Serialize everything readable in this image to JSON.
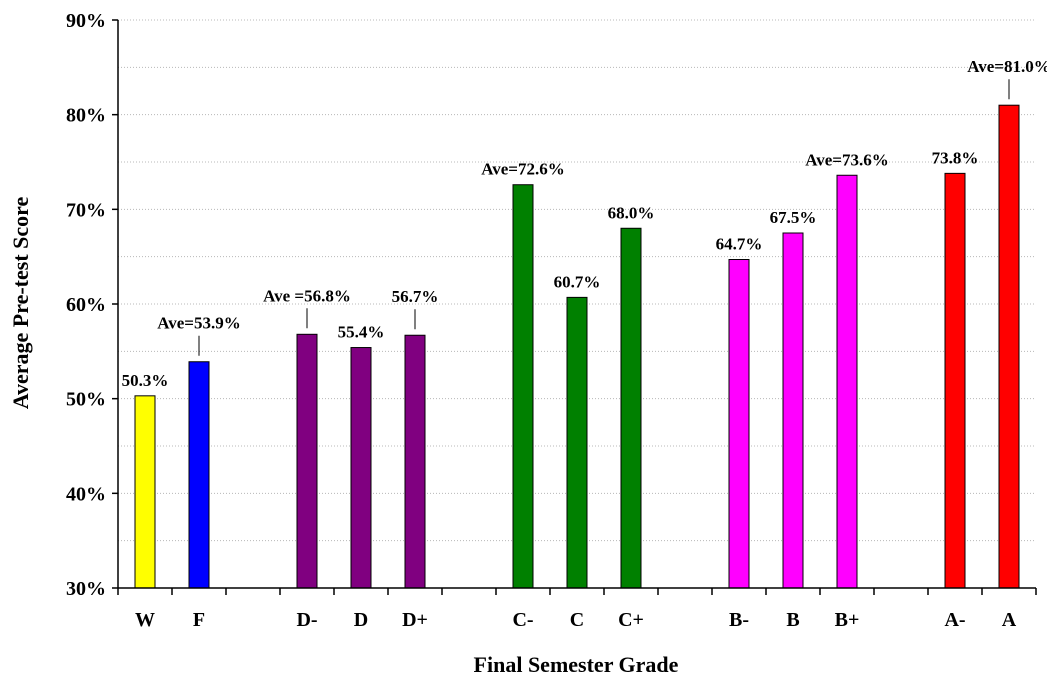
{
  "chart_data": {
    "type": "bar",
    "xlabel": "Final Semester Grade",
    "ylabel": "Average Pre-test Score",
    "ylim": [
      30,
      90
    ],
    "yticks": [
      30,
      40,
      50,
      60,
      70,
      80,
      90
    ],
    "ytick_labels": [
      "30%",
      "40%",
      "50%",
      "60%",
      "70%",
      "80%",
      "90%"
    ],
    "minor_grid_step": 5,
    "grid": true,
    "categories": [
      "W",
      "F",
      "",
      "D-",
      "D",
      "D+",
      "",
      "C-",
      "C",
      "C+",
      "",
      "B-",
      "B",
      "B+",
      "",
      "A-",
      "A"
    ],
    "bars": [
      {
        "category": "W",
        "slot": 0,
        "value": 50.3,
        "color": "#ffff00",
        "label": "50.3%",
        "label_style": "above"
      },
      {
        "category": "F",
        "slot": 1,
        "value": 53.9,
        "color": "#0000ff",
        "label": "Ave=53.9%",
        "label_style": "leader"
      },
      {
        "category": "D-",
        "slot": 3,
        "value": 56.8,
        "color": "#800080",
        "label": "Ave =56.8%",
        "label_style": "leader"
      },
      {
        "category": "D",
        "slot": 4,
        "value": 55.4,
        "color": "#800080",
        "label": "55.4%",
        "label_style": "above"
      },
      {
        "category": "D+",
        "slot": 5,
        "value": 56.7,
        "color": "#800080",
        "label": "56.7%",
        "label_style": "leader"
      },
      {
        "category": "C-",
        "slot": 7,
        "value": 72.6,
        "color": "#008000",
        "label": "Ave=72.6%",
        "label_style": "above"
      },
      {
        "category": "C",
        "slot": 8,
        "value": 60.7,
        "color": "#008000",
        "label": "60.7%",
        "label_style": "above"
      },
      {
        "category": "C+",
        "slot": 9,
        "value": 68.0,
        "color": "#008000",
        "label": "68.0%",
        "label_style": "above"
      },
      {
        "category": "B-",
        "slot": 11,
        "value": 64.7,
        "color": "#ff00ff",
        "label": "64.7%",
        "label_style": "above"
      },
      {
        "category": "B",
        "slot": 12,
        "value": 67.5,
        "color": "#ff00ff",
        "label": "67.5%",
        "label_style": "above"
      },
      {
        "category": "B+",
        "slot": 13,
        "value": 73.6,
        "color": "#ff00ff",
        "label": "Ave=73.6%",
        "label_style": "above"
      },
      {
        "category": "A-",
        "slot": 15,
        "value": 73.8,
        "color": "#ff0000",
        "label": "73.8%",
        "label_style": "above"
      },
      {
        "category": "A",
        "slot": 16,
        "value": 81.0,
        "color": "#ff0000",
        "label": "Ave=81.0%",
        "label_style": "leader"
      }
    ]
  }
}
